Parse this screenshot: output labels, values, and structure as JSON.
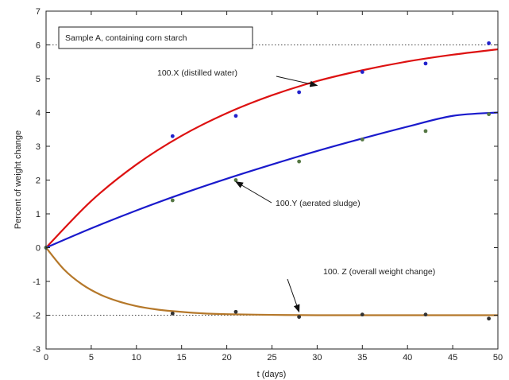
{
  "chart_data": {
    "type": "line",
    "title": "",
    "xlabel": "t (days)",
    "ylabel": "Percent of weight change",
    "xlim": [
      0,
      50
    ],
    "ylim": [
      -3,
      7
    ],
    "xticks": [
      0,
      5,
      10,
      15,
      20,
      25,
      30,
      35,
      40,
      45,
      50
    ],
    "yticks": [
      -3,
      -2,
      -1,
      0,
      1,
      2,
      3,
      4,
      5,
      6,
      7
    ],
    "grid": "dotted horizontal lines at y = -2 and y = 6",
    "legend_box": "Sample A, containing corn starch",
    "series": [
      {
        "name": "100.X (distilled water)",
        "color": "#dd1111",
        "fit_curve": [
          [
            0,
            0
          ],
          [
            5,
            1.38
          ],
          [
            10,
            2.46
          ],
          [
            15,
            3.31
          ],
          [
            20,
            3.98
          ],
          [
            25,
            4.51
          ],
          [
            30,
            4.93
          ],
          [
            35,
            5.25
          ],
          [
            40,
            5.51
          ],
          [
            45,
            5.71
          ],
          [
            50,
            5.87
          ]
        ],
        "points": [
          [
            0,
            0
          ],
          [
            14,
            3.3
          ],
          [
            21,
            3.9
          ],
          [
            28,
            4.6
          ],
          [
            35,
            5.2
          ],
          [
            42,
            5.45
          ],
          [
            49,
            6.05
          ]
        ],
        "point_color": "#2222cc"
      },
      {
        "name": "100.Y (aerated sludge)",
        "color": "#1a1acc",
        "fit_curve": [
          [
            0,
            0
          ],
          [
            5,
            0.57
          ],
          [
            10,
            1.1
          ],
          [
            15,
            1.59
          ],
          [
            20,
            2.04
          ],
          [
            25,
            2.46
          ],
          [
            30,
            2.86
          ],
          [
            35,
            3.23
          ],
          [
            40,
            3.58
          ],
          [
            45,
            3.9
          ],
          [
            50,
            4.0
          ]
        ],
        "points": [
          [
            0,
            0
          ],
          [
            14,
            1.4
          ],
          [
            21,
            2.0
          ],
          [
            28,
            2.55
          ],
          [
            35,
            3.2
          ],
          [
            42,
            3.45
          ],
          [
            49,
            3.95
          ]
        ],
        "point_color": "#557744"
      },
      {
        "name": "100. Z (overall weight change)",
        "color": "#b5782a",
        "fit_curve": [
          [
            0,
            0
          ],
          [
            2,
            -0.65
          ],
          [
            4,
            -1.09
          ],
          [
            6,
            -1.39
          ],
          [
            8,
            -1.59
          ],
          [
            10,
            -1.73
          ],
          [
            12,
            -1.82
          ],
          [
            14,
            -1.88
          ],
          [
            17,
            -1.94
          ],
          [
            20,
            -1.97
          ],
          [
            25,
            -1.99
          ],
          [
            30,
            -2.0
          ],
          [
            40,
            -2.0
          ],
          [
            50,
            -2.0
          ]
        ],
        "points": [
          [
            14,
            -1.95
          ],
          [
            21,
            -1.9
          ],
          [
            28,
            -2.05
          ],
          [
            35,
            -1.98
          ],
          [
            42,
            -1.98
          ],
          [
            49,
            -2.1
          ]
        ],
        "point_color": "#333333"
      }
    ],
    "annotations": [
      {
        "text": "100.X (distilled water)",
        "series": 0,
        "arrow_to": [
          30,
          4.8
        ]
      },
      {
        "text": "100.Y (aerated sludge)",
        "series": 1,
        "arrow_to": [
          21,
          1.95
        ]
      },
      {
        "text": "100. Z (overall weight change)",
        "series": 2,
        "arrow_to": [
          28,
          -1.9
        ]
      }
    ]
  }
}
